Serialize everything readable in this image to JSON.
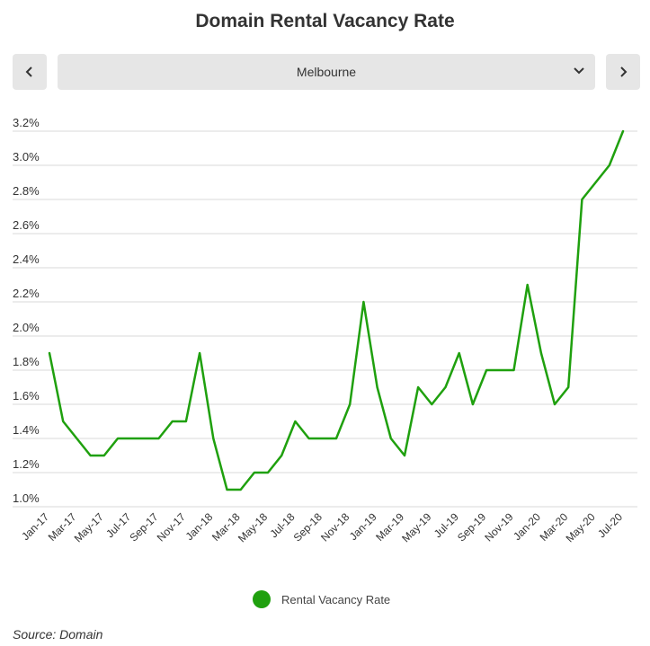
{
  "title": "Domain Rental Vacancy Rate",
  "nav": {
    "prev_label": "‹",
    "next_label": "›"
  },
  "selector": {
    "selected": "Melbourne"
  },
  "legend": {
    "label": "Rental Vacancy Rate"
  },
  "source": "Source: Domain",
  "colors": {
    "line": "#1fa00e",
    "grid": "#d9d9d9",
    "button": "#e6e6e6"
  },
  "chart_data": {
    "type": "line",
    "x": [
      "Jan-17",
      "Feb-17",
      "Mar-17",
      "Apr-17",
      "May-17",
      "Jun-17",
      "Jul-17",
      "Aug-17",
      "Sep-17",
      "Oct-17",
      "Nov-17",
      "Dec-17",
      "Jan-18",
      "Feb-18",
      "Mar-18",
      "Apr-18",
      "May-18",
      "Jun-18",
      "Jul-18",
      "Aug-18",
      "Sep-18",
      "Oct-18",
      "Nov-18",
      "Dec-18",
      "Jan-19",
      "Feb-19",
      "Mar-19",
      "Apr-19",
      "May-19",
      "Jun-19",
      "Jul-19",
      "Aug-19",
      "Sep-19",
      "Oct-19",
      "Nov-19",
      "Dec-19",
      "Jan-20",
      "Feb-20",
      "Mar-20",
      "Apr-20",
      "May-20",
      "Jun-20",
      "Jul-20"
    ],
    "x_tick_labels": [
      "Jan-17",
      "Mar-17",
      "May-17",
      "Jul-17",
      "Sep-17",
      "Nov-17",
      "Jan-18",
      "Mar-18",
      "May-18",
      "Jul-18",
      "Sep-18",
      "Nov-18",
      "Jan-19",
      "Mar-19",
      "May-19",
      "Jul-19",
      "Sep-19",
      "Nov-19",
      "Jan-20",
      "Mar-20",
      "May-20",
      "Jul-20"
    ],
    "series": [
      {
        "name": "Rental Vacancy Rate",
        "values": [
          1.9,
          1.5,
          1.4,
          1.3,
          1.3,
          1.4,
          1.4,
          1.4,
          1.4,
          1.5,
          1.5,
          1.9,
          1.4,
          1.1,
          1.1,
          1.2,
          1.2,
          1.3,
          1.5,
          1.4,
          1.4,
          1.4,
          1.6,
          2.2,
          1.7,
          1.4,
          1.3,
          1.7,
          1.6,
          1.7,
          1.9,
          1.6,
          1.8,
          1.8,
          1.8,
          2.3,
          1.9,
          1.6,
          1.7,
          2.8,
          2.9,
          3.0,
          3.2
        ]
      }
    ],
    "y_ticks": [
      "1.0%",
      "1.2%",
      "1.4%",
      "1.6%",
      "1.8%",
      "2.0%",
      "2.2%",
      "2.4%",
      "2.6%",
      "2.8%",
      "3.0%",
      "3.2%"
    ],
    "ylim": [
      1.0,
      3.2
    ],
    "grid": true,
    "legend_position": "bottom-center"
  }
}
